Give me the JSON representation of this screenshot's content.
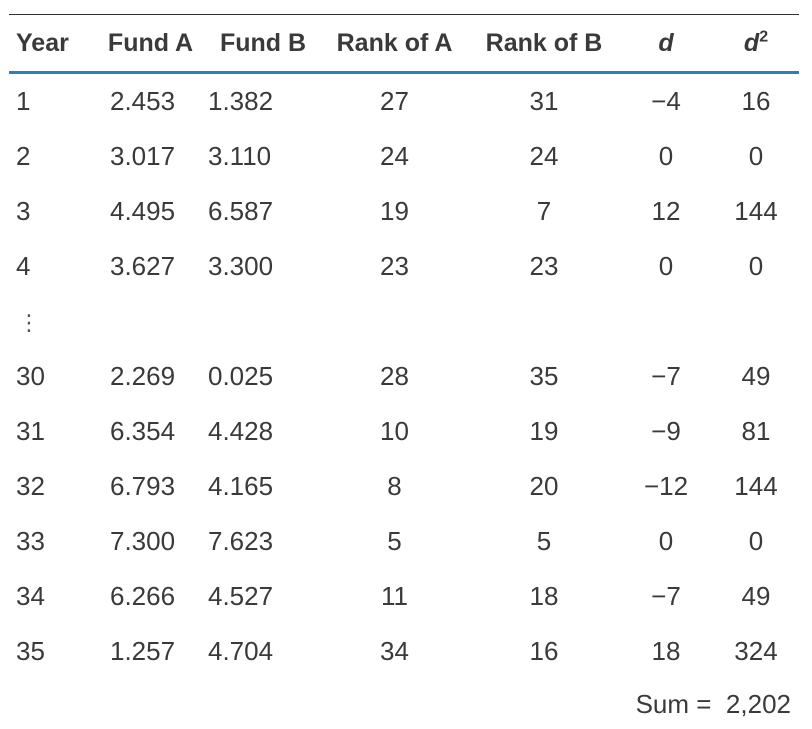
{
  "table": {
    "headers": {
      "year": "Year",
      "fund_a": "Fund A",
      "fund_b": "Fund B",
      "rank_a": "Rank of A",
      "rank_b": "Rank of B",
      "d": "d",
      "d2_base": "d",
      "d2_exp": "2"
    },
    "rows_top": [
      {
        "year": "1",
        "fund_a": "2.453",
        "fund_b": "1.382",
        "rank_a": "27",
        "rank_b": "31",
        "d": "−4",
        "d2": "16"
      },
      {
        "year": "2",
        "fund_a": "3.017",
        "fund_b": "3.110",
        "rank_a": "24",
        "rank_b": "24",
        "d": "0",
        "d2": "0"
      },
      {
        "year": "3",
        "fund_a": "4.495",
        "fund_b": "6.587",
        "rank_a": "19",
        "rank_b": "7",
        "d": "12",
        "d2": "144"
      },
      {
        "year": "4",
        "fund_a": "3.627",
        "fund_b": "3.300",
        "rank_a": "23",
        "rank_b": "23",
        "d": "0",
        "d2": "0"
      }
    ],
    "ellipsis": "⋮",
    "rows_bottom": [
      {
        "year": "30",
        "fund_a": "2.269",
        "fund_b": "0.025",
        "rank_a": "28",
        "rank_b": "35",
        "d": "−7",
        "d2": "49"
      },
      {
        "year": "31",
        "fund_a": "6.354",
        "fund_b": "4.428",
        "rank_a": "10",
        "rank_b": "19",
        "d": "−9",
        "d2": "81"
      },
      {
        "year": "32",
        "fund_a": "6.793",
        "fund_b": "4.165",
        "rank_a": "8",
        "rank_b": "20",
        "d": "−12",
        "d2": "144"
      },
      {
        "year": "33",
        "fund_a": "7.300",
        "fund_b": "7.623",
        "rank_a": "5",
        "rank_b": "5",
        "d": "0",
        "d2": "0"
      },
      {
        "year": "34",
        "fund_a": "6.266",
        "fund_b": "4.527",
        "rank_a": "11",
        "rank_b": "18",
        "d": "−7",
        "d2": "49"
      },
      {
        "year": "35",
        "fund_a": "1.257",
        "fund_b": "4.704",
        "rank_a": "34",
        "rank_b": "16",
        "d": "18",
        "d2": "324"
      }
    ],
    "sum_label": "Sum =",
    "sum_value": "2,202"
  }
}
